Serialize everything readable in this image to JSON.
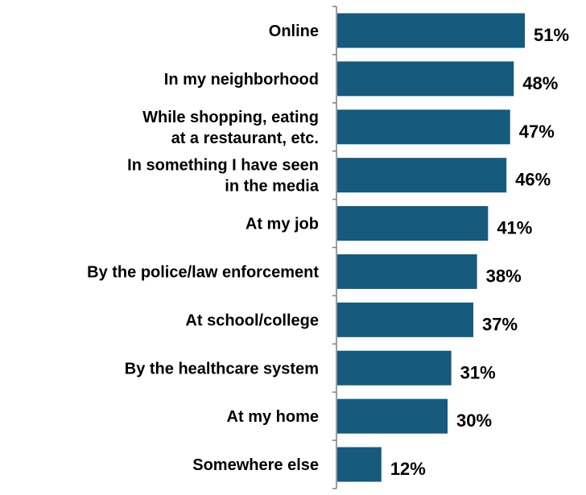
{
  "chart_data": {
    "type": "bar",
    "orientation": "horizontal",
    "categories": [
      "Online",
      "In my neighborhood",
      "While shopping, eating\nat a restaurant, etc.",
      "In something I have seen\nin the media",
      "At my job",
      "By the police/law enforcement",
      "At school/college",
      "By the healthcare system",
      "At my home",
      "Somewhere else"
    ],
    "values": [
      51,
      48,
      47,
      46,
      41,
      38,
      37,
      31,
      30,
      12
    ],
    "value_labels": [
      "51%",
      "48%",
      "47%",
      "46%",
      "41%",
      "38%",
      "37%",
      "31%",
      "30%",
      "12%"
    ],
    "title": "",
    "xlabel": "",
    "ylabel": "",
    "xlim": [
      0,
      51
    ],
    "grid": false,
    "legend": "none",
    "bar_color": "#165a7e"
  }
}
